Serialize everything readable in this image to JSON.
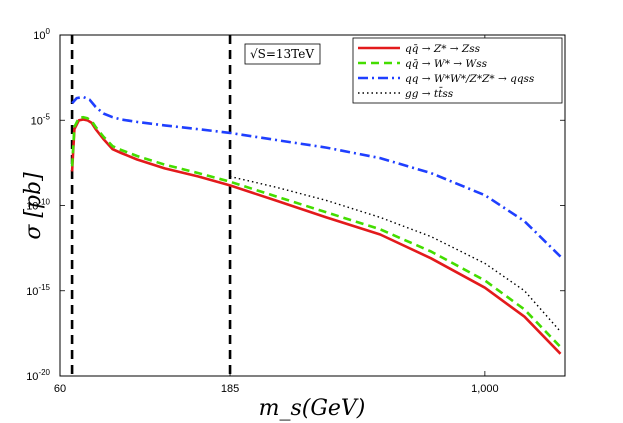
{
  "chart_data": {
    "type": "line",
    "title": "",
    "xlabel": "m_s(GeV)",
    "ylabel": "σ [pb]",
    "xscale": "log",
    "yscale": "log",
    "xlim": [
      60,
      1700
    ],
    "ylim": [
      1e-20,
      1
    ],
    "xticks": [
      {
        "value": 60,
        "label": "60"
      },
      {
        "value": 185,
        "label": "185"
      },
      {
        "value": 1000,
        "label": "1,000"
      }
    ],
    "yticks": [
      {
        "value": 1e-20,
        "base": "10",
        "exp": "-20"
      },
      {
        "value": 1e-15,
        "base": "10",
        "exp": "-15"
      },
      {
        "value": 1e-10,
        "base": "10",
        "exp": "-10"
      },
      {
        "value": 1e-05,
        "base": "10",
        "exp": "-5"
      },
      {
        "value": 1,
        "base": "10",
        "exp": "0"
      }
    ],
    "vlines": [
      65,
      185
    ],
    "annotation": "√S=13TeV",
    "legend_position": "top-right",
    "series": [
      {
        "name": "qq̄ → Z* → Zss",
        "color": "#e31a1c",
        "dash": "solid",
        "x": [
          65,
          66,
          68,
          70,
          72,
          74,
          76,
          80,
          85,
          90,
          100,
          120,
          150,
          185,
          250,
          350,
          500,
          700,
          1000,
          1300,
          1650
        ],
        "y": [
          1e-08,
          3e-06,
          1e-05,
          1.1e-05,
          1e-05,
          7e-06,
          3e-06,
          8e-07,
          2e-07,
          1.2e-07,
          5e-08,
          1.5e-08,
          5e-09,
          1.5e-09,
          2e-10,
          2e-11,
          2e-12,
          8e-14,
          1.5e-15,
          3e-17,
          2e-19
        ]
      },
      {
        "name": "qq̄ → W* → Wss",
        "color": "#44dd00",
        "dash": "dashed",
        "x": [
          65,
          66,
          68,
          70,
          72,
          74,
          76,
          80,
          85,
          90,
          100,
          120,
          150,
          185,
          250,
          350,
          500,
          700,
          1000,
          1300,
          1650
        ],
        "y": [
          2e-08,
          4e-06,
          1.4e-05,
          1.5e-05,
          1.3e-05,
          9e-06,
          4e-06,
          1.1e-06,
          3e-07,
          1.8e-07,
          8e-08,
          2.5e-08,
          8e-09,
          2.5e-09,
          3.5e-10,
          4e-11,
          4e-12,
          2e-13,
          4e-15,
          8e-17,
          5e-19
        ]
      },
      {
        "name": "qq → W*W*/Z*Z* → qqss",
        "color": "#1f3fff",
        "dash": "dashdot",
        "x": [
          65,
          67,
          70,
          73,
          76,
          80,
          85,
          90,
          100,
          120,
          150,
          185,
          250,
          350,
          500,
          700,
          1000,
          1300,
          1650
        ],
        "y": [
          0.0001,
          0.0002,
          0.00023,
          0.00016,
          6e-05,
          2.5e-05,
          1.5e-05,
          1.1e-05,
          8e-06,
          5e-06,
          3e-06,
          1.8e-06,
          7e-07,
          2.5e-07,
          6e-08,
          8e-09,
          4e-10,
          1.2e-11,
          1e-13
        ]
      },
      {
        "name": "gg → tt̄ss",
        "color": "#000000",
        "dash": "dotted",
        "x": [
          185,
          250,
          350,
          500,
          700,
          1000,
          1300,
          1650
        ],
        "y": [
          5e-09,
          1.2e-09,
          2e-10,
          2e-11,
          1.5e-12,
          4e-14,
          1e-15,
          4e-18
        ]
      }
    ]
  }
}
